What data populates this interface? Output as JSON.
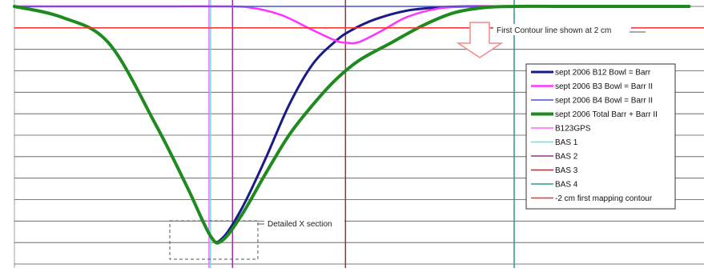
{
  "chart_data": {
    "type": "line",
    "title": "",
    "xlabel": "",
    "ylabel": "",
    "grid": true,
    "legend_position": "right",
    "x_range": [
      0,
      879
    ],
    "y_range": [
      0,
      12
    ],
    "grid_y_values": [
      0,
      1,
      2,
      3,
      4,
      5,
      6,
      7,
      8,
      9,
      10,
      11,
      12
    ],
    "series": [
      {
        "name": "sept 2006 B12 Bowl = Barr",
        "color": "#1a1a8a",
        "width": 3,
        "kind": "curve",
        "x": [
          0,
          60,
          120,
          180,
          220,
          250,
          265,
          290,
          320,
          350,
          380,
          410,
          430,
          460,
          500,
          540,
          580,
          620,
          660,
          720,
          800,
          860
        ],
        "y": [
          12,
          11.5,
          10.3,
          6.5,
          3.6,
          1.3,
          1.2,
          2.6,
          4.9,
          7.4,
          9.3,
          10.4,
          10.9,
          11.4,
          11.8,
          11.95,
          12,
          12,
          12,
          12,
          12,
          12
        ]
      },
      {
        "name": "sept 2006 B3 Bowl = Barr II",
        "color": "#ff33ff",
        "width": 2.5,
        "kind": "curve",
        "x": [
          0,
          200,
          260,
          300,
          340,
          380,
          410,
          425,
          440,
          470,
          500,
          540,
          580,
          620,
          700,
          860
        ],
        "y": [
          12,
          12,
          12,
          11.95,
          11.6,
          10.9,
          10.4,
          10.3,
          10.35,
          10.9,
          11.5,
          11.9,
          12,
          12,
          12,
          12
        ]
      },
      {
        "name": "sept 2006 B4 Bowl = Barr II",
        "color": "#4a50d8",
        "width": 1.5,
        "kind": "curve",
        "x": [
          0,
          860
        ],
        "y": [
          12,
          12
        ]
      },
      {
        "name": "sept 2006 Total Barr + Barr II",
        "color": "#1f8a1f",
        "width": 4,
        "kind": "curve",
        "x": [
          0,
          60,
          120,
          180,
          220,
          250,
          265,
          290,
          320,
          350,
          380,
          410,
          440,
          480,
          520,
          560,
          600,
          640,
          700,
          860
        ],
        "y": [
          12,
          11.5,
          10.3,
          6.5,
          3.6,
          1.3,
          1.1,
          2.3,
          4.2,
          6.0,
          7.4,
          8.6,
          9.5,
          10.3,
          11.1,
          11.7,
          11.95,
          12,
          12,
          12
        ]
      },
      {
        "name": "B123GPS",
        "color": "#ff66ff",
        "width": 1.5,
        "kind": "vline",
        "x": [
          248
        ]
      },
      {
        "name": "BAS 1",
        "color": "#66e0e0",
        "width": 1.5,
        "kind": "vline",
        "x": [
          250
        ]
      },
      {
        "name": "BAS 2",
        "color": "#993399",
        "width": 1.5,
        "kind": "vline",
        "x": [
          278
        ]
      },
      {
        "name": "BAS 3",
        "color": "#993333",
        "width": 1.5,
        "kind": "vline",
        "x": [
          422
        ]
      },
      {
        "name": "BAS 4",
        "color": "#2a9a9a",
        "width": 1.5,
        "kind": "vline",
        "x": [
          637
        ]
      },
      {
        "name": "-2 cm first mapping contour",
        "color": "#ff2a2a",
        "width": 1.5,
        "kind": "hline",
        "y": [
          11
        ]
      }
    ],
    "annotations": [
      {
        "text": "First Contour line shown at 2 cm"
      },
      {
        "text": "Detailed X section"
      }
    ]
  }
}
